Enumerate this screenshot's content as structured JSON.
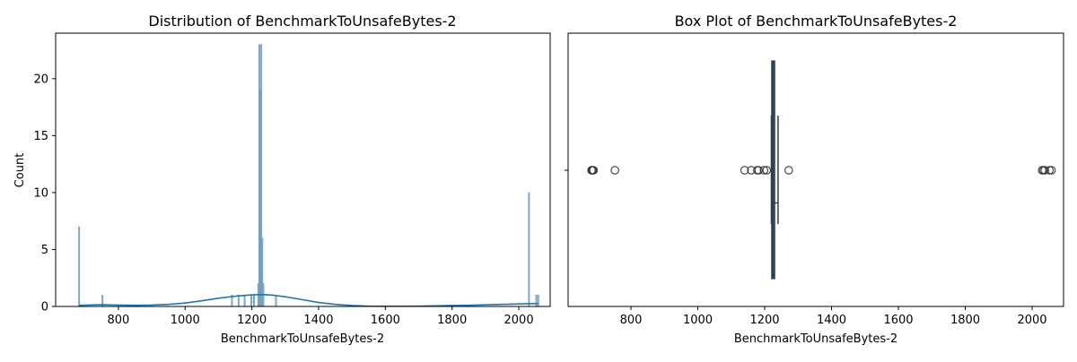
{
  "colors": {
    "hist_bar": "#6f9cc0",
    "kde_line": "#1f77b4",
    "box_fill": "#3b5c78",
    "box_edge": "#2f3f4c",
    "frame": "#000000"
  },
  "chart_data": [
    {
      "type": "bar",
      "title": "Distribution of BenchmarkToUnsafeBytes-2",
      "xlabel": "BenchmarkToUnsafeBytes-2",
      "ylabel": "Count",
      "xlim": [
        612,
        2094
      ],
      "ylim": [
        0,
        24
      ],
      "xticks": [
        800,
        1000,
        1200,
        1400,
        1600,
        1800,
        2000
      ],
      "yticks": [
        0,
        5,
        10,
        15,
        20
      ],
      "bin_width": 3,
      "bins": [
        {
          "x": 682,
          "count": 7
        },
        {
          "x": 752,
          "count": 1
        },
        {
          "x": 1140,
          "count": 1
        },
        {
          "x": 1160,
          "count": 1
        },
        {
          "x": 1178,
          "count": 1
        },
        {
          "x": 1198,
          "count": 1
        },
        {
          "x": 1206,
          "count": 1
        },
        {
          "x": 1219,
          "count": 2
        },
        {
          "x": 1222,
          "count": 23
        },
        {
          "x": 1225,
          "count": 19
        },
        {
          "x": 1228,
          "count": 23
        },
        {
          "x": 1231,
          "count": 6
        },
        {
          "x": 1234,
          "count": 2
        },
        {
          "x": 1272,
          "count": 1
        },
        {
          "x": 2030,
          "count": 10
        },
        {
          "x": 2052,
          "count": 1
        },
        {
          "x": 2058,
          "count": 1
        }
      ],
      "kde": {
        "x": [
          682,
          750,
          800,
          850,
          900,
          950,
          1000,
          1050,
          1100,
          1150,
          1200,
          1230,
          1260,
          1300,
          1350,
          1400,
          1450,
          1500,
          1550,
          1600,
          1650,
          1700,
          1750,
          1800,
          1850,
          1900,
          1950,
          2000,
          2030,
          2058
        ],
        "y": [
          0.1,
          0.15,
          0.12,
          0.1,
          0.12,
          0.18,
          0.3,
          0.5,
          0.72,
          0.9,
          1.02,
          1.05,
          1.0,
          0.85,
          0.6,
          0.35,
          0.18,
          0.08,
          0.03,
          0.02,
          0.02,
          0.03,
          0.05,
          0.08,
          0.1,
          0.14,
          0.18,
          0.22,
          0.24,
          0.25
        ]
      }
    },
    {
      "type": "box",
      "title": "Box Plot of BenchmarkToUnsafeBytes-2",
      "xlabel": "BenchmarkToUnsafeBytes-2",
      "xlim": [
        612,
        2094
      ],
      "xticks": [
        800,
        1000,
        1200,
        1400,
        1600,
        1800,
        2000
      ],
      "whisker_low": 1220,
      "q1": 1221,
      "median": 1225,
      "q3": 1230,
      "whisker_high": 1240,
      "outliers": [
        682,
        684,
        686,
        688,
        752,
        1140,
        1160,
        1178,
        1182,
        1198,
        1206,
        1272,
        2030,
        2034,
        2038,
        2052,
        2058
      ]
    }
  ]
}
